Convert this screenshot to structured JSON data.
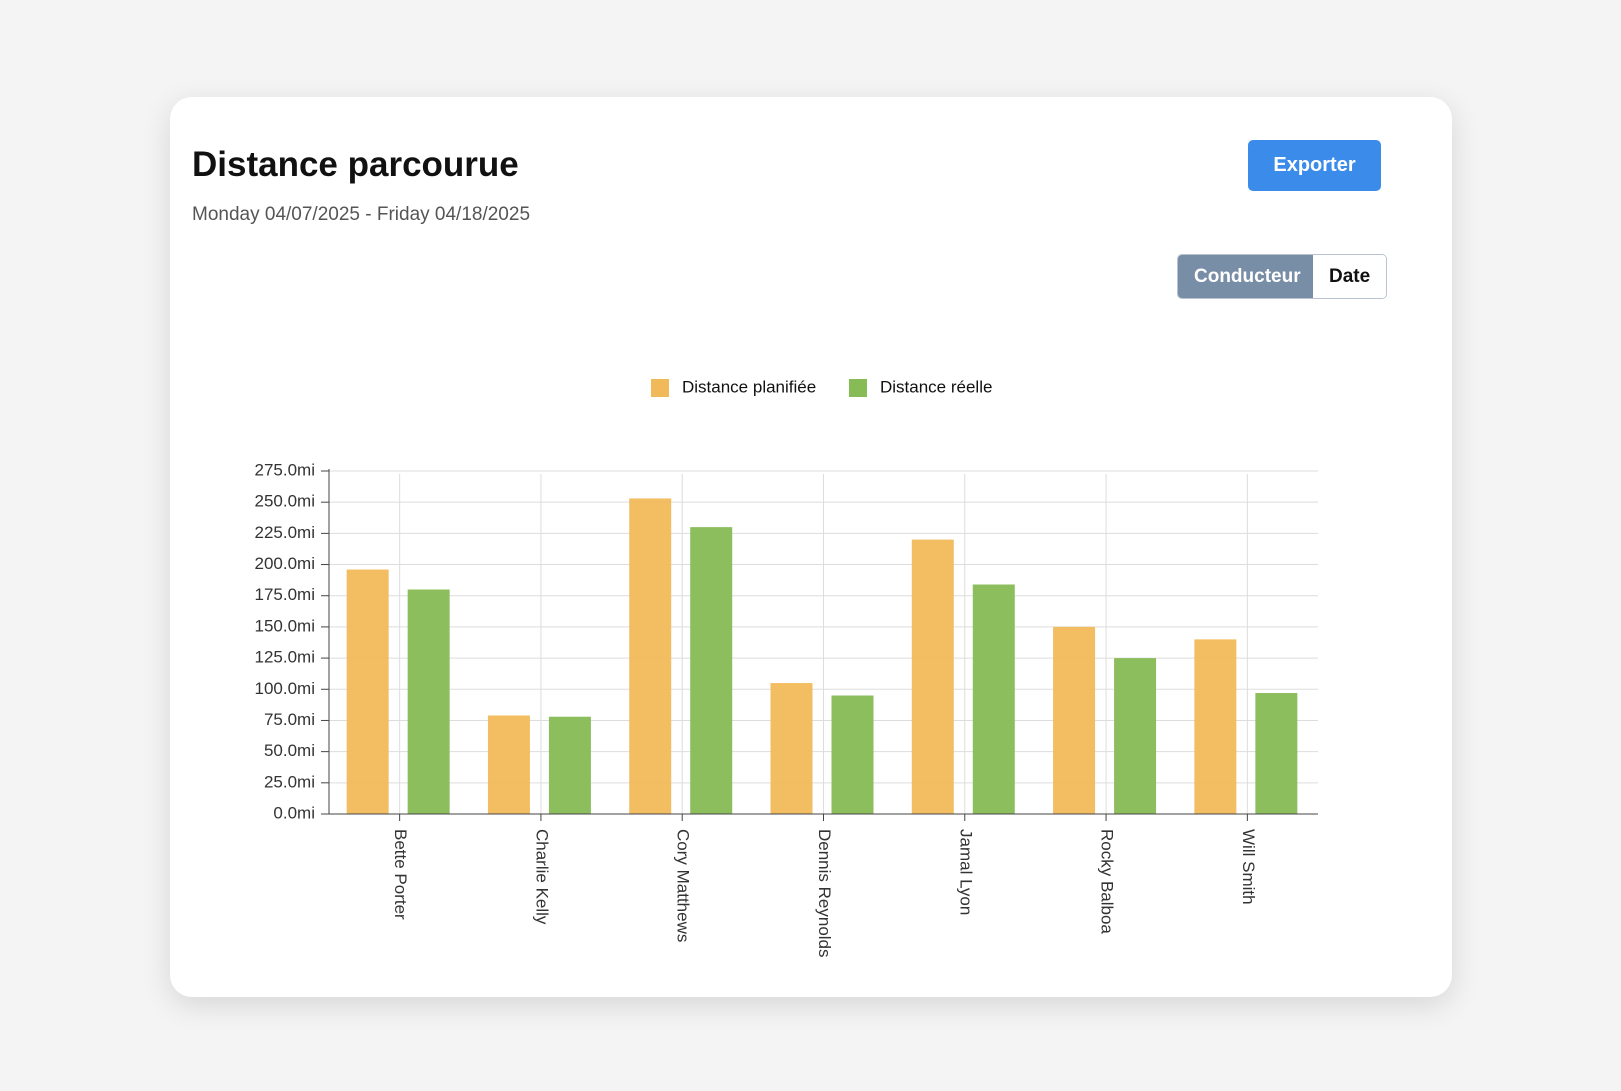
{
  "header": {
    "title": "Distance parcourue",
    "subtitle": "Monday 04/07/2025 - Friday 04/18/2025",
    "export_button": "Exporter"
  },
  "toggle": {
    "options": [
      "Conducteur",
      "Date"
    ],
    "selected": 0
  },
  "chart_data": {
    "type": "bar",
    "categories": [
      "Bette Porter",
      "Charlie Kelly",
      "Cory Matthews",
      "Dennis Reynolds",
      "Jamal Lyon",
      "Rocky Balboa",
      "Will Smith"
    ],
    "series": [
      {
        "name": "Distance planifiée",
        "color": "#f2b95a",
        "values": [
          196,
          79,
          253,
          105,
          220,
          150,
          140
        ]
      },
      {
        "name": "Distance réelle",
        "color": "#86bb55",
        "values": [
          180,
          78,
          230,
          95,
          184,
          125,
          97
        ]
      }
    ],
    "ylim": [
      0,
      275
    ],
    "yticks": [
      {
        "value": 0,
        "label": "0.0mi"
      },
      {
        "value": 25,
        "label": "25.0mi"
      },
      {
        "value": 50,
        "label": "50.0mi"
      },
      {
        "value": 75,
        "label": "75.0mi"
      },
      {
        "value": 100,
        "label": "100.0mi"
      },
      {
        "value": 125,
        "label": "125.0mi"
      },
      {
        "value": 150,
        "label": "150.0mi"
      },
      {
        "value": 175,
        "label": "175.0mi"
      },
      {
        "value": 200,
        "label": "200.0mi"
      },
      {
        "value": 225,
        "label": "225.0mi"
      },
      {
        "value": 250,
        "label": "250.0mi"
      },
      {
        "value": 275,
        "label": "275.0mi"
      }
    ],
    "grid": true,
    "legend": "top"
  }
}
